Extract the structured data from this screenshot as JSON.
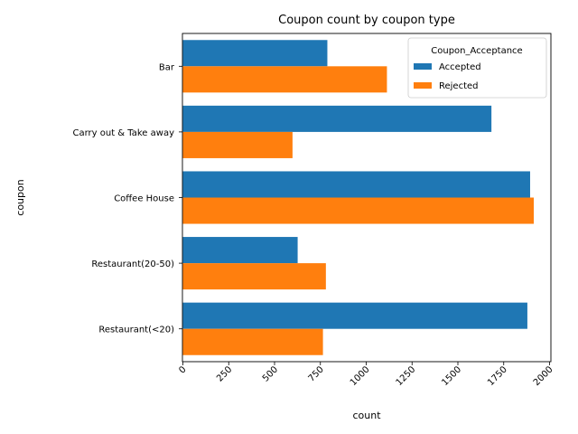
{
  "chart_data": {
    "type": "bar",
    "orientation": "horizontal",
    "title": "Coupon count by coupon type",
    "xlabel": "count",
    "ylabel": "coupon",
    "categories": [
      "Bar",
      "Carry out & Take away",
      "Coffee House",
      "Restaurant(20-50)",
      "Restaurant(<20)"
    ],
    "series": [
      {
        "name": "Accepted",
        "color": "#1f77b4",
        "values": [
          788,
          1683,
          1894,
          626,
          1879
        ]
      },
      {
        "name": "Rejected",
        "color": "#ff7f0e",
        "values": [
          1113,
          598,
          1914,
          780,
          764
        ]
      }
    ],
    "xlim": [
      0,
      2000
    ],
    "xticks": [
      "0",
      "250",
      "500",
      "750",
      "1000",
      "1250",
      "1500",
      "1750",
      "2000"
    ],
    "grid": false,
    "legend": {
      "title": "Coupon_Acceptance",
      "placement": "top-right"
    }
  }
}
